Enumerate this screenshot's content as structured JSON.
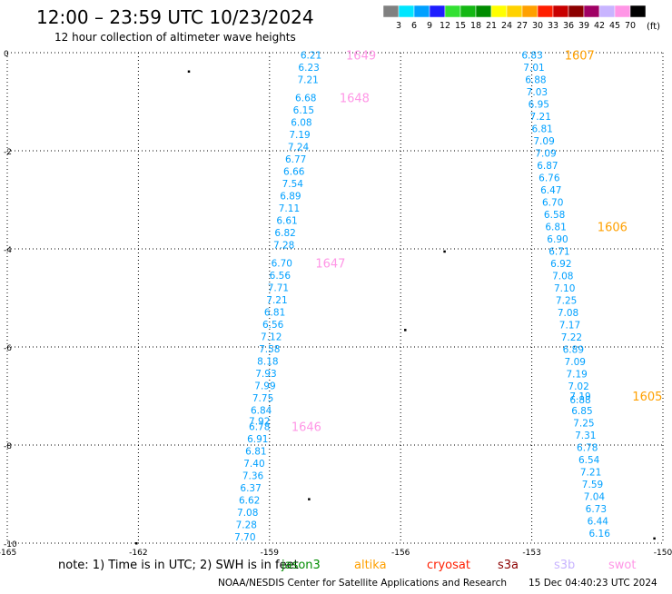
{
  "header": {
    "title": "12:00 – 23:59 UTC 10/23/2024",
    "subtitle": "12 hour collection of altimeter wave heights"
  },
  "colorbar": {
    "unit": "(ft)",
    "bins": [
      {
        "color": "#808080",
        "label": "3"
      },
      {
        "color": "#00e6ff",
        "label": "6"
      },
      {
        "color": "#00a0ff",
        "label": "9"
      },
      {
        "color": "#1e1eff",
        "label": "12"
      },
      {
        "color": "#33e033",
        "label": "15"
      },
      {
        "color": "#14b814",
        "label": "18"
      },
      {
        "color": "#008c00",
        "label": "21"
      },
      {
        "color": "#ffff00",
        "label": "24"
      },
      {
        "color": "#ffd200",
        "label": "27"
      },
      {
        "color": "#ffa000",
        "label": "30"
      },
      {
        "color": "#ff1e00",
        "label": "33"
      },
      {
        "color": "#c80000",
        "label": "36"
      },
      {
        "color": "#8c0000",
        "label": "39"
      },
      {
        "color": "#a00064",
        "label": "42"
      },
      {
        "color": "#c8b4ff",
        "label": "45"
      },
      {
        "color": "#ff96e6",
        "label": "70"
      },
      {
        "color": "#000000",
        "label": ""
      }
    ]
  },
  "map": {
    "lon_range": [
      -165,
      -150
    ],
    "lat_range": [
      -10,
      0
    ],
    "x_ticks": [
      {
        "v": -165,
        "label": "-165"
      },
      {
        "v": -162,
        "label": "-162"
      },
      {
        "v": -159,
        "label": "-159"
      },
      {
        "v": -156,
        "label": "-156"
      },
      {
        "v": -153,
        "label": "-153"
      },
      {
        "v": -150,
        "label": "-150"
      }
    ],
    "y_ticks": [
      {
        "v": 0,
        "label": "0"
      },
      {
        "v": -2,
        "label": "-2"
      },
      {
        "v": -4,
        "label": "-4"
      },
      {
        "v": -6,
        "label": "-6"
      },
      {
        "v": -8,
        "label": "-8"
      },
      {
        "v": -10,
        "label": "-10"
      }
    ],
    "grid": "dotted"
  },
  "chart_data": {
    "type": "scatter",
    "value_color": "#00a0ff",
    "pass_color_pink": "#ff96e6",
    "pass_color_orange": "#ffa000",
    "track_west": [
      {
        "lon": -158.05,
        "lat": -0.05,
        "v": "6.21"
      },
      {
        "lon": -158.1,
        "lat": -0.3,
        "v": "6.23"
      },
      {
        "lon": -158.12,
        "lat": -0.55,
        "v": "7.21"
      },
      {
        "lon": -158.17,
        "lat": -0.92,
        "v": "6.68"
      },
      {
        "lon": -158.22,
        "lat": -1.17,
        "v": "6.15"
      },
      {
        "lon": -158.27,
        "lat": -1.42,
        "v": "6.08"
      },
      {
        "lon": -158.31,
        "lat": -1.67,
        "v": "7.19"
      },
      {
        "lon": -158.34,
        "lat": -1.92,
        "v": "7.24"
      },
      {
        "lon": -158.4,
        "lat": -2.17,
        "v": "6.77"
      },
      {
        "lon": -158.44,
        "lat": -2.42,
        "v": "6.66"
      },
      {
        "lon": -158.47,
        "lat": -2.67,
        "v": "7.54"
      },
      {
        "lon": -158.52,
        "lat": -2.92,
        "v": "6.89"
      },
      {
        "lon": -158.55,
        "lat": -3.17,
        "v": "7.11"
      },
      {
        "lon": -158.6,
        "lat": -3.42,
        "v": "6.61"
      },
      {
        "lon": -158.64,
        "lat": -3.67,
        "v": "6.82"
      },
      {
        "lon": -158.67,
        "lat": -3.92,
        "v": "7.28"
      },
      {
        "lon": -158.72,
        "lat": -4.29,
        "v": "6.70"
      },
      {
        "lon": -158.76,
        "lat": -4.54,
        "v": "6.56"
      },
      {
        "lon": -158.8,
        "lat": -4.79,
        "v": "7.71"
      },
      {
        "lon": -158.83,
        "lat": -5.04,
        "v": "7.21"
      },
      {
        "lon": -158.88,
        "lat": -5.29,
        "v": "6.81"
      },
      {
        "lon": -158.92,
        "lat": -5.54,
        "v": "6.56"
      },
      {
        "lon": -158.96,
        "lat": -5.79,
        "v": "7.12"
      },
      {
        "lon": -159.0,
        "lat": -6.04,
        "v": "7.58"
      },
      {
        "lon": -159.04,
        "lat": -6.29,
        "v": "8.18"
      },
      {
        "lon": -159.08,
        "lat": -6.54,
        "v": "7.93"
      },
      {
        "lon": -159.1,
        "lat": -6.79,
        "v": "7.99"
      },
      {
        "lon": -159.15,
        "lat": -7.04,
        "v": "7.75"
      },
      {
        "lon": -159.19,
        "lat": -7.29,
        "v": "6.84"
      },
      {
        "lon": -159.23,
        "lat": -7.51,
        "v": "7.92"
      },
      {
        "lon": -159.23,
        "lat": -7.62,
        "v": "6.78"
      },
      {
        "lon": -159.27,
        "lat": -7.87,
        "v": "6.91"
      },
      {
        "lon": -159.31,
        "lat": -8.12,
        "v": "6.81"
      },
      {
        "lon": -159.35,
        "lat": -8.37,
        "v": "7.40"
      },
      {
        "lon": -159.38,
        "lat": -8.62,
        "v": "7.36"
      },
      {
        "lon": -159.43,
        "lat": -8.87,
        "v": "6.37"
      },
      {
        "lon": -159.46,
        "lat": -9.12,
        "v": "6.62"
      },
      {
        "lon": -159.5,
        "lat": -9.37,
        "v": "7.08"
      },
      {
        "lon": -159.53,
        "lat": -9.62,
        "v": "7.28"
      },
      {
        "lon": -159.56,
        "lat": -9.87,
        "v": "7.70"
      }
    ],
    "track_east": [
      {
        "lon": -152.99,
        "lat": -0.05,
        "v": "6.83"
      },
      {
        "lon": -152.95,
        "lat": -0.3,
        "v": "7.01"
      },
      {
        "lon": -152.91,
        "lat": -0.55,
        "v": "6.88"
      },
      {
        "lon": -152.88,
        "lat": -0.8,
        "v": "7.03"
      },
      {
        "lon": -152.84,
        "lat": -1.05,
        "v": "6.95"
      },
      {
        "lon": -152.8,
        "lat": -1.3,
        "v": "7.21"
      },
      {
        "lon": -152.76,
        "lat": -1.55,
        "v": "6.81"
      },
      {
        "lon": -152.72,
        "lat": -1.8,
        "v": "7.09"
      },
      {
        "lon": -152.68,
        "lat": -2.05,
        "v": "7.09"
      },
      {
        "lon": -152.64,
        "lat": -2.3,
        "v": "6.87"
      },
      {
        "lon": -152.6,
        "lat": -2.55,
        "v": "6.76"
      },
      {
        "lon": -152.56,
        "lat": -2.8,
        "v": "6.47"
      },
      {
        "lon": -152.52,
        "lat": -3.05,
        "v": "6.70"
      },
      {
        "lon": -152.48,
        "lat": -3.3,
        "v": "6.58"
      },
      {
        "lon": -152.45,
        "lat": -3.55,
        "v": "6.81"
      },
      {
        "lon": -152.41,
        "lat": -3.8,
        "v": "6.90"
      },
      {
        "lon": -152.37,
        "lat": -4.05,
        "v": "6.71"
      },
      {
        "lon": -152.33,
        "lat": -4.3,
        "v": "6.92"
      },
      {
        "lon": -152.29,
        "lat": -4.55,
        "v": "7.08"
      },
      {
        "lon": -152.25,
        "lat": -4.8,
        "v": "7.10"
      },
      {
        "lon": -152.21,
        "lat": -5.05,
        "v": "7.25"
      },
      {
        "lon": -152.17,
        "lat": -5.3,
        "v": "7.08"
      },
      {
        "lon": -152.13,
        "lat": -5.55,
        "v": "7.17"
      },
      {
        "lon": -152.09,
        "lat": -5.8,
        "v": "7.22"
      },
      {
        "lon": -152.05,
        "lat": -6.05,
        "v": "6.89"
      },
      {
        "lon": -152.01,
        "lat": -6.3,
        "v": "7.09"
      },
      {
        "lon": -151.97,
        "lat": -6.55,
        "v": "7.19"
      },
      {
        "lon": -151.93,
        "lat": -6.8,
        "v": "7.02"
      },
      {
        "lon": -151.89,
        "lat": -7.0,
        "v": "7.19"
      },
      {
        "lon": -151.89,
        "lat": -7.07,
        "v": "6.88"
      },
      {
        "lon": -151.85,
        "lat": -7.3,
        "v": "6.85"
      },
      {
        "lon": -151.81,
        "lat": -7.55,
        "v": "7.25"
      },
      {
        "lon": -151.77,
        "lat": -7.8,
        "v": "7.31"
      },
      {
        "lon": -151.73,
        "lat": -8.05,
        "v": "6.78"
      },
      {
        "lon": -151.69,
        "lat": -8.3,
        "v": "6.54"
      },
      {
        "lon": -151.65,
        "lat": -8.55,
        "v": "7.21"
      },
      {
        "lon": -151.61,
        "lat": -8.8,
        "v": "7.59"
      },
      {
        "lon": -151.57,
        "lat": -9.05,
        "v": "7.04"
      },
      {
        "lon": -151.53,
        "lat": -9.3,
        "v": "6.73"
      },
      {
        "lon": -151.49,
        "lat": -9.55,
        "v": "6.44"
      },
      {
        "lon": -151.45,
        "lat": -9.8,
        "v": "6.16"
      }
    ],
    "pass_labels": [
      {
        "lon": -157.25,
        "lat": -0.05,
        "text": "1649",
        "c": "pink"
      },
      {
        "lon": -157.4,
        "lat": -0.92,
        "text": "1648",
        "c": "pink"
      },
      {
        "lon": -157.95,
        "lat": -4.29,
        "text": "1647",
        "c": "pink"
      },
      {
        "lon": -158.5,
        "lat": -7.62,
        "text": "1646",
        "c": "pink"
      },
      {
        "lon": -152.25,
        "lat": -0.05,
        "text": "1607",
        "c": "orange"
      },
      {
        "lon": -151.5,
        "lat": -3.55,
        "text": "1606",
        "c": "orange"
      },
      {
        "lon": -150.7,
        "lat": -7.0,
        "text": "1605",
        "c": "orange"
      }
    ],
    "islands": [
      {
        "lon": -160.85,
        "lat": -0.38
      },
      {
        "lon": -155.0,
        "lat": -4.05
      },
      {
        "lon": -155.9,
        "lat": -5.65
      },
      {
        "lon": -158.1,
        "lat": -9.1
      },
      {
        "lon": -150.2,
        "lat": -9.9
      },
      {
        "lon": -162.05,
        "lat": -10.0
      }
    ]
  },
  "footer": {
    "note": "note:  1) Time is in UTC; 2) SWH is in feet",
    "satellites": [
      {
        "name": "jason3",
        "color": "#008c00"
      },
      {
        "name": "altika",
        "color": "#ffa000"
      },
      {
        "name": "cryosat",
        "color": "#ff1e00"
      },
      {
        "name": "s3a",
        "color": "#8c0000"
      },
      {
        "name": "s3b",
        "color": "#c8b4ff"
      },
      {
        "name": "swot",
        "color": "#ff96e6"
      }
    ],
    "credit": "NOAA/NESDIS Center for Satellite Applications and Research",
    "timestamp": "15 Dec 04:40:23 UTC 2024"
  }
}
